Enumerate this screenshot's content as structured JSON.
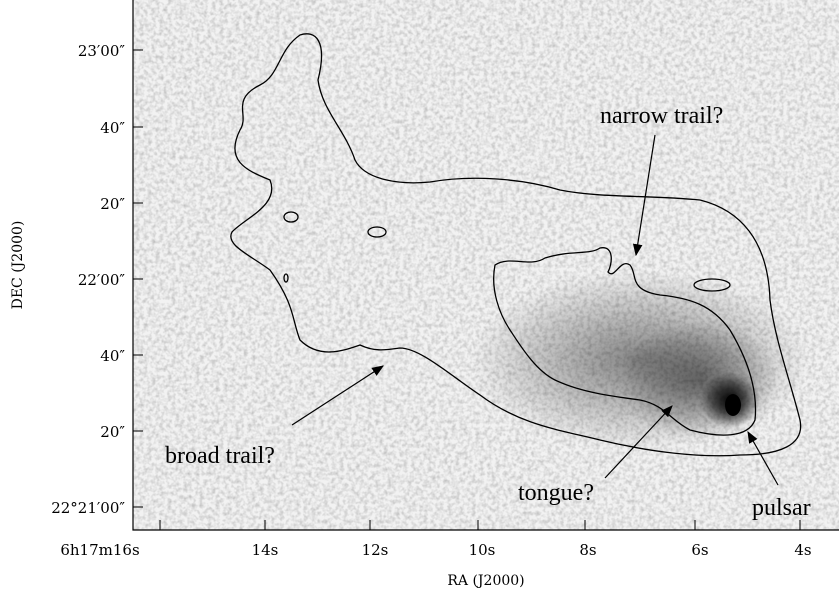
{
  "y_axis": {
    "label": "DEC (J2000)",
    "ticks": [
      "23′00″",
      "40″",
      "20″",
      "22′00″",
      "40″",
      "20″",
      "22°21′00″"
    ]
  },
  "x_axis": {
    "label": "RA (J2000)",
    "ticks": [
      "6h17m16s",
      "14s",
      "12s",
      "10s",
      "8s",
      "6s",
      "4s"
    ]
  },
  "annotations": {
    "narrow": "narrow trail?",
    "broad": "broad trail?",
    "tongue": "tongue?",
    "pulsar": "pulsar"
  }
}
